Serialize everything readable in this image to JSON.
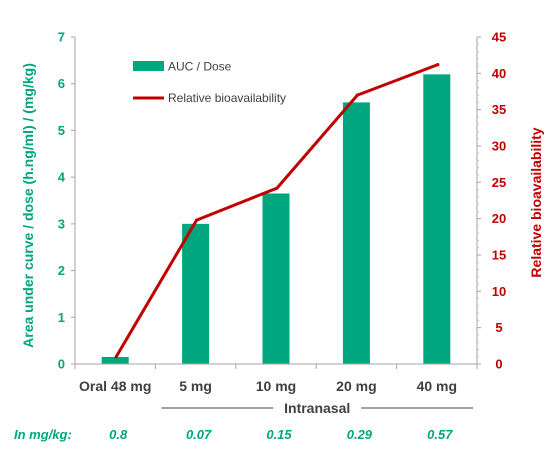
{
  "chart_data": {
    "type": "bar",
    "categories": [
      "Oral 48 mg",
      "5 mg",
      "10 mg",
      "20 mg",
      "40 mg"
    ],
    "series": [
      {
        "name": "AUC / Dose",
        "type": "bar",
        "axis": "left",
        "values": [
          0.15,
          3.0,
          3.65,
          5.6,
          6.2
        ]
      },
      {
        "name": "Relative bioavailability",
        "type": "line",
        "axis": "right",
        "values": [
          1,
          19.8,
          24.2,
          37,
          41.2
        ]
      }
    ],
    "ylabel": "Area under curve / dose (h.ng/ml) / (mg/kg)",
    "y2label": "Relative bioavailability",
    "ylim": [
      0,
      7
    ],
    "y2lim": [
      0,
      45
    ],
    "yticks": [
      "0",
      "1",
      "2",
      "3",
      "4",
      "5",
      "6",
      "7"
    ],
    "y2ticks": [
      "0",
      "5",
      "10",
      "15",
      "20",
      "25",
      "30",
      "35",
      "40",
      "45"
    ],
    "group_label": "Intranasal",
    "dose_row": {
      "label": "In mg/kg:",
      "values": [
        "0.8",
        "0.07",
        "0.15",
        "0.29",
        "0.57"
      ]
    },
    "legend_position": "top-left",
    "grid": false,
    "colors": {
      "bar": "#00a67e",
      "line": "#c00000",
      "left_axis": "#00a67e",
      "right_axis": "#c00000",
      "text": "#404040"
    }
  }
}
